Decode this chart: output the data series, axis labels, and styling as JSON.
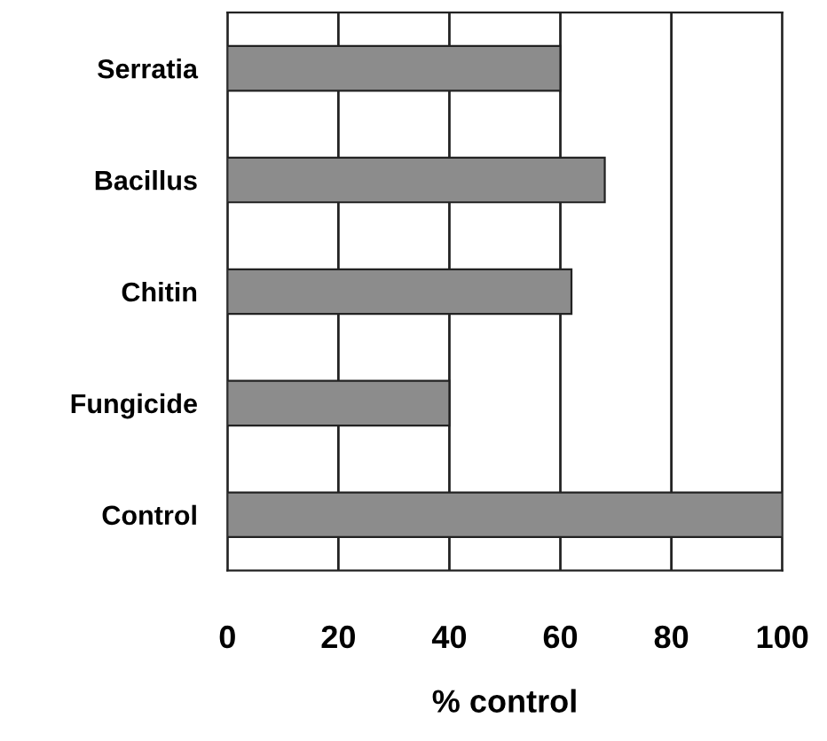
{
  "chart_data": {
    "type": "bar",
    "orientation": "horizontal",
    "xlabel": "% control",
    "categories": [
      "Serratia",
      "Bacillus",
      "Chitin",
      "Fungicide",
      "Control"
    ],
    "values": [
      60,
      68,
      62,
      40,
      100
    ],
    "color": "#8c8c8c",
    "xlim": [
      0,
      100
    ],
    "xticks": [
      0,
      20,
      40,
      60,
      80,
      100
    ],
    "grid": "x"
  }
}
